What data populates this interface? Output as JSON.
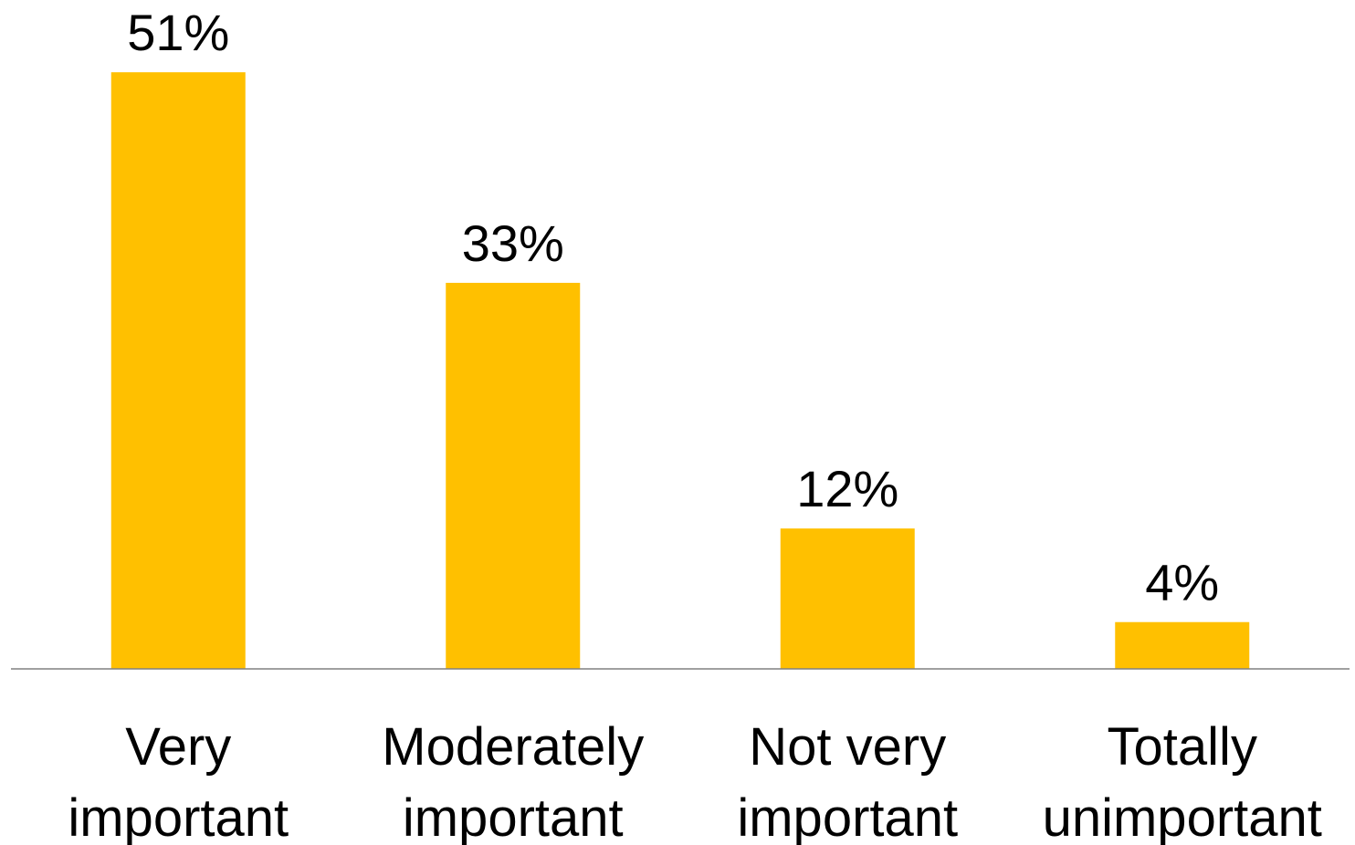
{
  "chart_data": {
    "type": "bar",
    "categories": [
      [
        "Very",
        "important"
      ],
      [
        "Moderately",
        "important"
      ],
      [
        "Not very",
        "important"
      ],
      [
        "Totally",
        "unimportant"
      ]
    ],
    "values": [
      51,
      33,
      12,
      4
    ],
    "data_labels": [
      "51%",
      "33%",
      "12%",
      "4%"
    ],
    "title": "",
    "xlabel": "",
    "ylabel": "",
    "ylim": [
      0,
      55
    ],
    "grid": false,
    "legend": "none",
    "bar_color": "#FFC000",
    "axis_color": "#808080"
  }
}
